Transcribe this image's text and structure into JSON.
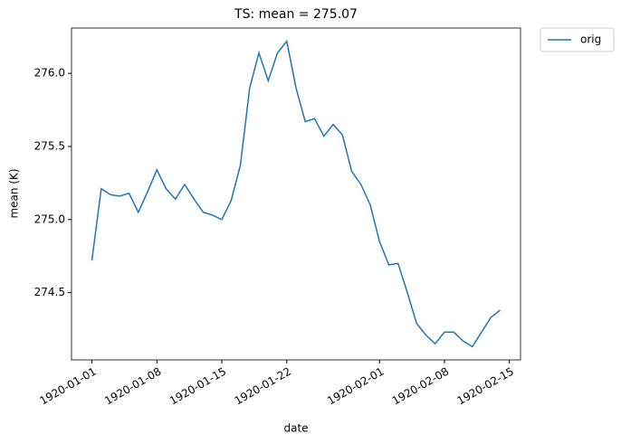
{
  "chart_data": {
    "type": "line",
    "title": "TS: mean =  275.07",
    "xlabel": "date",
    "ylabel": "mean (K)",
    "x": [
      "1920-01-01",
      "1920-01-02",
      "1920-01-03",
      "1920-01-04",
      "1920-01-05",
      "1920-01-06",
      "1920-01-07",
      "1920-01-08",
      "1920-01-09",
      "1920-01-10",
      "1920-01-11",
      "1920-01-12",
      "1920-01-13",
      "1920-01-14",
      "1920-01-15",
      "1920-01-16",
      "1920-01-17",
      "1920-01-18",
      "1920-01-19",
      "1920-01-20",
      "1920-01-21",
      "1920-01-22",
      "1920-01-23",
      "1920-01-24",
      "1920-01-25",
      "1920-01-26",
      "1920-01-27",
      "1920-01-28",
      "1920-01-29",
      "1920-01-30",
      "1920-01-31",
      "1920-02-01",
      "1920-02-02",
      "1920-02-03",
      "1920-02-04",
      "1920-02-05",
      "1920-02-06",
      "1920-02-07",
      "1920-02-08",
      "1920-02-09",
      "1920-02-10",
      "1920-02-11",
      "1920-02-12",
      "1920-02-13",
      "1920-02-14"
    ],
    "series": [
      {
        "name": "orig",
        "color": "#1f77b4",
        "values": [
          274.72,
          275.21,
          275.17,
          275.16,
          275.18,
          275.05,
          275.19,
          275.34,
          275.21,
          275.14,
          275.24,
          275.14,
          275.05,
          275.03,
          275.0,
          275.13,
          275.37,
          275.9,
          276.14,
          275.95,
          276.14,
          276.22,
          275.9,
          275.67,
          275.69,
          275.57,
          275.65,
          275.58,
          275.33,
          275.24,
          275.1,
          274.85,
          274.69,
          274.7,
          274.5,
          274.29,
          274.21,
          274.15,
          274.23,
          274.23,
          274.17,
          274.13,
          274.23,
          274.33,
          274.38
        ]
      }
    ],
    "ylim": [
      274.04,
      276.31
    ],
    "yticks": [
      274.5,
      {
        "value": 275,
        "label": "275.0"
      },
      275.5,
      {
        "value": 276,
        "label": "276.0"
      }
    ],
    "xticks": [
      "1920-01-01",
      "1920-01-08",
      "1920-01-15",
      "1920-01-22",
      "1920-02-01",
      "1920-02-08",
      "1920-02-15"
    ],
    "legend": "outside upper right"
  }
}
